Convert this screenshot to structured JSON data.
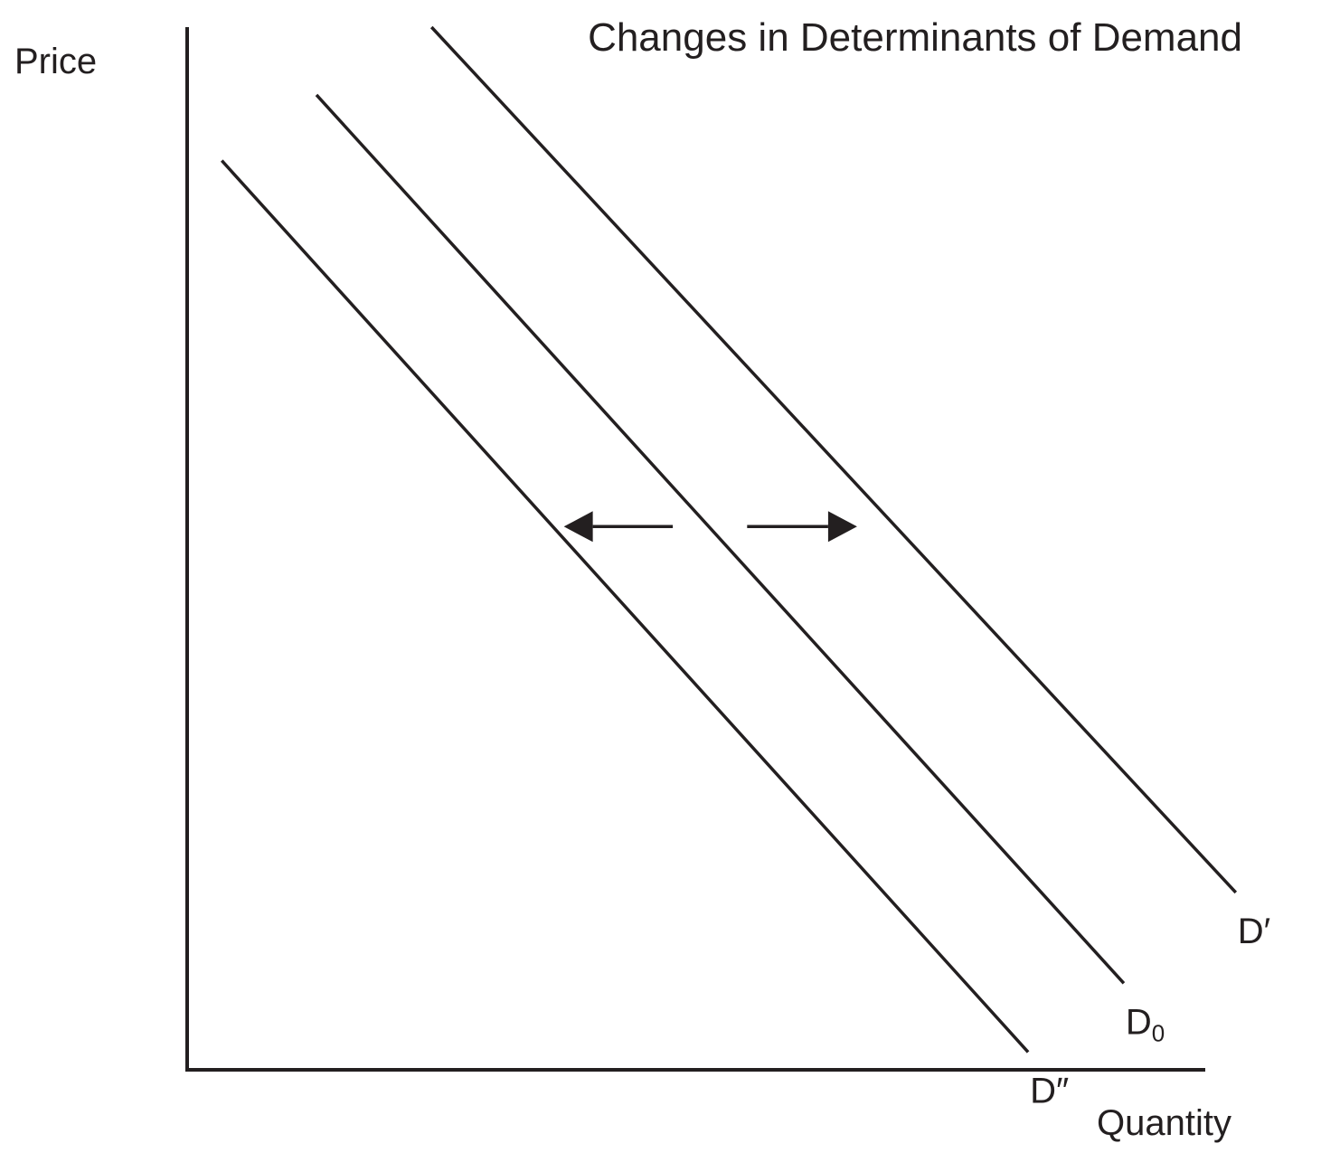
{
  "chart_data": {
    "type": "line",
    "title": "Changes in Determinants of Demand",
    "xlabel": "Quantity",
    "ylabel": "Price",
    "grid": false,
    "line_color": "#231f20",
    "series": [
      {
        "name": "D′",
        "label_main": "D′",
        "label_sub": "",
        "x": [
          24.0,
          103.0
        ],
        "y": [
          100.0,
          17.0
        ]
      },
      {
        "name": "D₀",
        "label_main": "D",
        "label_sub": "0",
        "x": [
          12.7,
          92.0
        ],
        "y": [
          93.5,
          8.3
        ]
      },
      {
        "name": "D″",
        "label_main": "D″",
        "label_sub": "",
        "x": [
          3.4,
          82.6
        ],
        "y": [
          87.2,
          1.7
        ]
      }
    ],
    "shift_arrows": [
      {
        "direction": "left",
        "from_x": 47.7,
        "to_x": 37.0,
        "y": 52.1
      },
      {
        "direction": "right",
        "from_x": 55.0,
        "to_x": 65.8,
        "y": 52.1
      }
    ],
    "xlim": [
      0,
      100
    ],
    "ylim": [
      0,
      100
    ]
  }
}
